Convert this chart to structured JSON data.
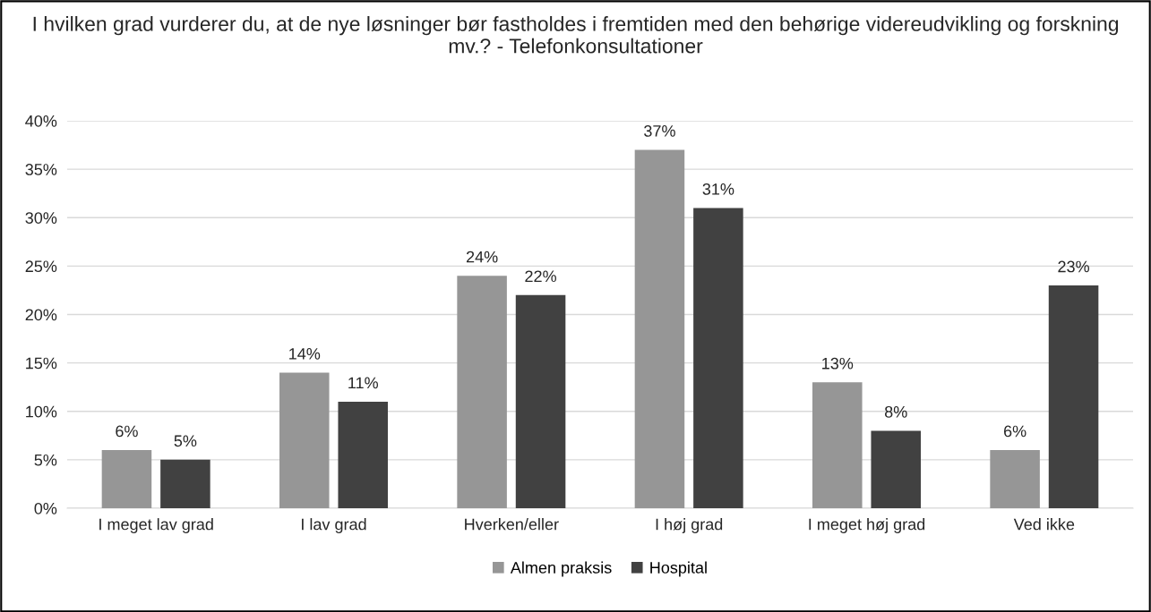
{
  "chart_data": {
    "type": "bar",
    "title": "I hvilken grad vurderer du, at de nye løsninger bør fastholdes i fremtiden med den behørige videreudvikling og forskning mv.? - Telefonkonsultationer",
    "categories": [
      "I meget lav grad",
      "I lav grad",
      "Hverken/eller",
      "I høj grad",
      "I meget høj grad",
      "Ved ikke"
    ],
    "series": [
      {
        "name": "Almen praksis",
        "color": "#969696",
        "values": [
          6,
          14,
          24,
          37,
          13,
          6
        ],
        "value_labels": [
          "6%",
          "14%",
          "24%",
          "37%",
          "13%",
          "6%"
        ]
      },
      {
        "name": "Hospital",
        "color": "#414141",
        "values": [
          5,
          11,
          22,
          31,
          8,
          23
        ],
        "value_labels": [
          "5%",
          "11%",
          "22%",
          "31%",
          "8%",
          "23%"
        ]
      }
    ],
    "ylim": [
      0,
      40
    ],
    "yticks": [
      {
        "value": 0,
        "label": "0%"
      },
      {
        "value": 5,
        "label": "5%"
      },
      {
        "value": 10,
        "label": "10%"
      },
      {
        "value": 15,
        "label": "15%"
      },
      {
        "value": 20,
        "label": "20%"
      },
      {
        "value": 25,
        "label": "25%"
      },
      {
        "value": 30,
        "label": "30%"
      },
      {
        "value": 35,
        "label": "35%"
      },
      {
        "value": 40,
        "label": "40%"
      }
    ],
    "grid": "y",
    "legend": "bottom"
  }
}
